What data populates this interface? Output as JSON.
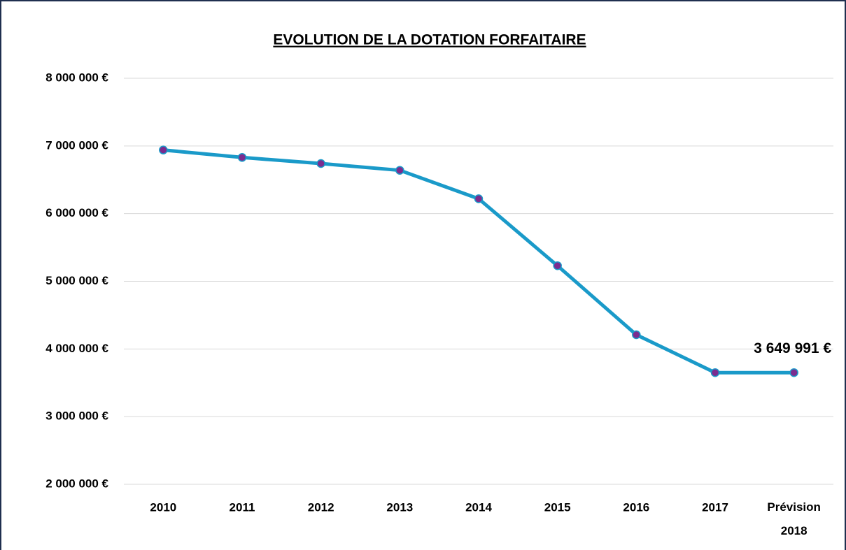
{
  "chart_data": {
    "type": "line",
    "title": "EVOLUTION DE LA DOTATION FORFAITAIRE",
    "categories": [
      "2010",
      "2011",
      "2012",
      "2013",
      "2014",
      "2015",
      "2016",
      "2017",
      "Prévision\n2018"
    ],
    "series": [
      {
        "name": "Dotation forfaitaire",
        "color": "#1a9ac9",
        "marker_color": "#7b2c8f",
        "values": [
          6940000,
          6830000,
          6740000,
          6640000,
          6220000,
          5230000,
          4210000,
          3650000,
          3649991
        ],
        "value_labels": [
          null,
          null,
          null,
          null,
          null,
          null,
          null,
          null,
          "3 649 991 €"
        ]
      }
    ],
    "ylim": [
      2000000,
      8000000
    ],
    "yticks": [
      {
        "value": 2000000,
        "label": "2 000 000 €"
      },
      {
        "value": 3000000,
        "label": "3 000 000 €"
      },
      {
        "value": 4000000,
        "label": "4 000 000 €"
      },
      {
        "value": 5000000,
        "label": "5 000 000 €"
      },
      {
        "value": 6000000,
        "label": "6 000 000 €"
      },
      {
        "value": 7000000,
        "label": "7 000 000 €"
      },
      {
        "value": 8000000,
        "label": "8 000 000 €"
      }
    ],
    "grid": true
  }
}
